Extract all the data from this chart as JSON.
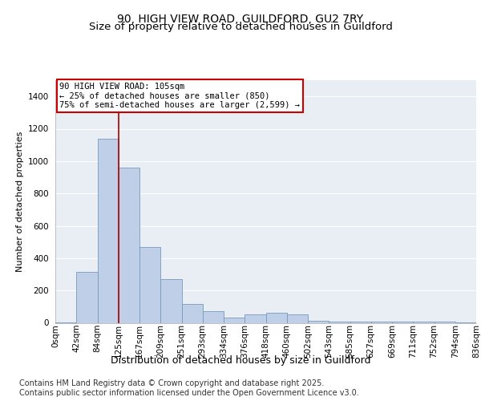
{
  "title_line1": "90, HIGH VIEW ROAD, GUILDFORD, GU2 7RY",
  "title_line2": "Size of property relative to detached houses in Guildford",
  "xlabel": "Distribution of detached houses by size in Guildford",
  "ylabel": "Number of detached properties",
  "bar_values": [
    2,
    315,
    1140,
    960,
    470,
    270,
    115,
    70,
    30,
    50,
    60,
    50,
    10,
    5,
    5,
    5,
    5,
    5,
    5,
    2
  ],
  "bin_labels": [
    "0sqm",
    "42sqm",
    "84sqm",
    "125sqm",
    "167sqm",
    "209sqm",
    "251sqm",
    "293sqm",
    "334sqm",
    "376sqm",
    "418sqm",
    "460sqm",
    "502sqm",
    "543sqm",
    "585sqm",
    "627sqm",
    "669sqm",
    "711sqm",
    "752sqm",
    "794sqm",
    "836sqm"
  ],
  "bar_color": "#BFCFE8",
  "bar_edge_color": "#7799BB",
  "background_color": "#E8EEF4",
  "grid_color": "#FFFFFF",
  "annotation_box_text": "90 HIGH VIEW ROAD: 105sqm\n← 25% of detached houses are smaller (850)\n75% of semi-detached houses are larger (2,599) →",
  "annotation_box_color": "#FFFFFF",
  "annotation_box_edge_color": "#CC0000",
  "vertical_line_color": "#AA0000",
  "ylim": [
    0,
    1500
  ],
  "yticks": [
    0,
    200,
    400,
    600,
    800,
    1000,
    1200,
    1400
  ],
  "footer_text": "Contains HM Land Registry data © Crown copyright and database right 2025.\nContains public sector information licensed under the Open Government Licence v3.0.",
  "title_fontsize": 10,
  "subtitle_fontsize": 9.5,
  "ylabel_fontsize": 8,
  "xlabel_fontsize": 9,
  "tick_fontsize": 7.5,
  "annotation_fontsize": 7.5,
  "footer_fontsize": 7
}
